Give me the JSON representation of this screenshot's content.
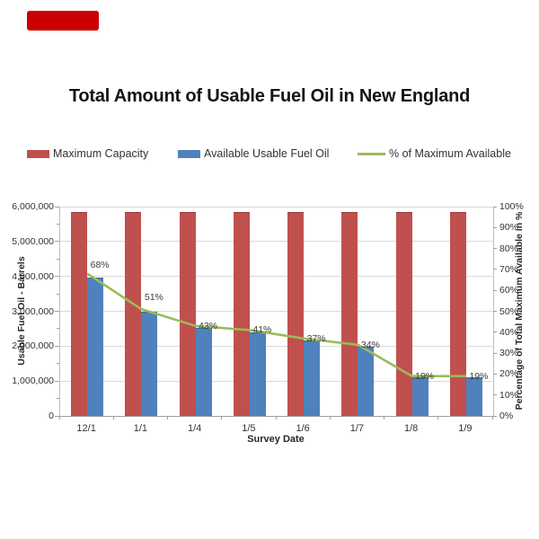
{
  "top_marker": {
    "color": "#CC0000"
  },
  "title": "Total Amount of Usable Fuel Oil in New England",
  "legend": {
    "items": [
      {
        "label": "Maximum Capacity",
        "color": "#C0504D",
        "swatch": "bar"
      },
      {
        "label": "Available Usable Fuel Oil",
        "color": "#4F81BD",
        "swatch": "bar"
      },
      {
        "label": "% of Maximum Available",
        "color": "#9BBB59",
        "swatch": "line"
      }
    ]
  },
  "chart_data": {
    "type": "bar",
    "subtype": "combo-bar-line-dual-axis",
    "categories": [
      "12/1",
      "1/1",
      "1/4",
      "1/5",
      "1/6",
      "1/7",
      "1/8",
      "1/9"
    ],
    "series": [
      {
        "name": "Maximum Capacity",
        "type": "bar",
        "axis": "left",
        "color": "#C0504D",
        "border": "#96403D",
        "values": [
          5850000,
          5850000,
          5850000,
          5850000,
          5850000,
          5850000,
          5850000,
          5850000
        ]
      },
      {
        "name": "Available Usable Fuel Oil",
        "type": "bar",
        "axis": "left",
        "color": "#4F81BD",
        "border": "#3F689A",
        "values": [
          3978000,
          2983500,
          2515500,
          2398500,
          2164500,
          1989000,
          1111500,
          1111500
        ]
      },
      {
        "name": "% of Maximum Available",
        "type": "line",
        "axis": "right",
        "color": "#9BBB59",
        "values": [
          68,
          51,
          43,
          41,
          37,
          34,
          19,
          19
        ],
        "point_labels": [
          "68%",
          "51%",
          "43%",
          "41%",
          "37%",
          "34%",
          "19%",
          "19%"
        ]
      }
    ],
    "title": "Total Amount of Usable Fuel Oil in New England",
    "xlabel": "Survey Date",
    "ylabel_left": "Usable Fuel Oil - Barrels",
    "ylabel_right": "Percentage of Total Maximum Available in %",
    "ylim_left": [
      0,
      6000000
    ],
    "ylim_right": [
      0,
      100
    ],
    "yticks_left": [
      "0",
      "1,000,000",
      "2,000,000",
      "3,000,000",
      "4,000,000",
      "5,000,000",
      "6,000,000"
    ],
    "yticks_right": [
      "0%",
      "10%",
      "20%",
      "30%",
      "40%",
      "50%",
      "60%",
      "70%",
      "80%",
      "90%",
      "100%"
    ],
    "grid": "horizontal",
    "gridline_color": "#d9d9d9",
    "legend_position": "top"
  }
}
